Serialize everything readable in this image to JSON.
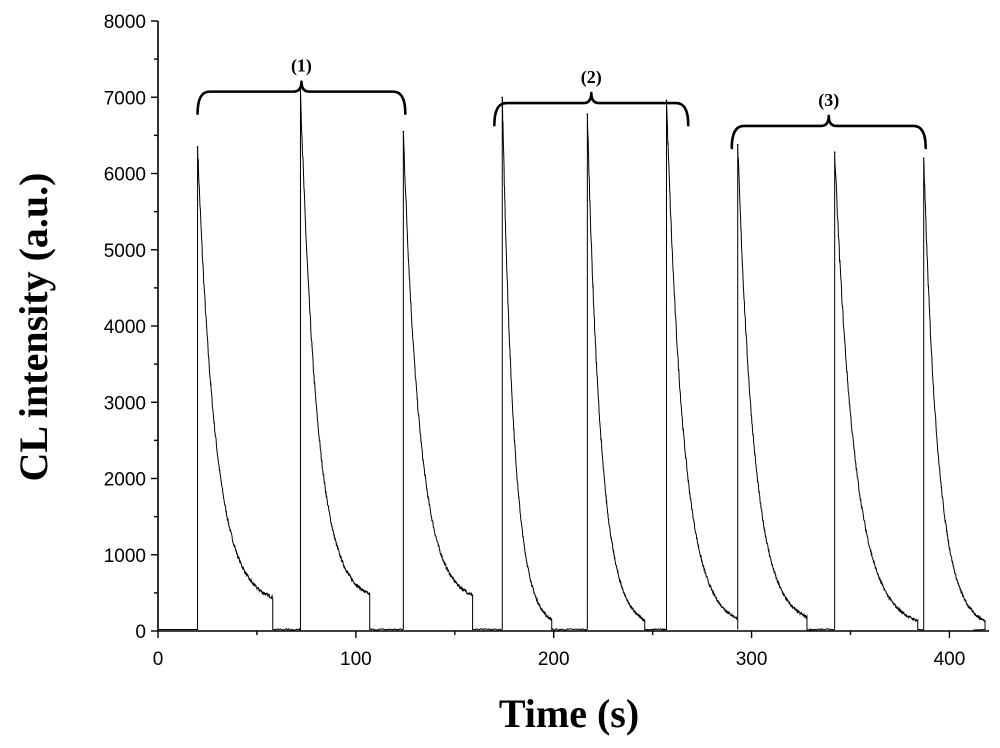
{
  "chart_data": {
    "type": "line",
    "title": "",
    "xlabel": "Time (s)",
    "ylabel": "CL intensity (a.u.)",
    "xlim": [
      0,
      420
    ],
    "ylim": [
      0,
      8000
    ],
    "x_ticks": [
      0,
      100,
      200,
      300,
      400
    ],
    "y_ticks": [
      0,
      1000,
      2000,
      3000,
      4000,
      5000,
      6000,
      7000,
      8000
    ],
    "grid": false,
    "baseline": 20,
    "peaks": [
      {
        "t": 20,
        "peak": 6350,
        "end": 58,
        "end_level": 350,
        "group": "(1)"
      },
      {
        "t": 72,
        "peak": 7100,
        "end": 107,
        "end_level": 380,
        "group": "(1)"
      },
      {
        "t": 124,
        "peak": 6550,
        "end": 159,
        "end_level": 380,
        "group": "(1)"
      },
      {
        "t": 174,
        "peak": 7000,
        "end": 199,
        "end_level": 40,
        "group": "(2)"
      },
      {
        "t": 217,
        "peak": 6780,
        "end": 246,
        "end_level": 40,
        "group": "(2)"
      },
      {
        "t": 257,
        "peak": 6960,
        "end": 293,
        "end_level": 60,
        "group": "(2)"
      },
      {
        "t": 293,
        "peak": 6380,
        "end": 328,
        "end_level": 90,
        "group": "(3)"
      },
      {
        "t": 342,
        "peak": 6280,
        "end": 384,
        "end_level": 40,
        "group": "(3)"
      },
      {
        "t": 387,
        "peak": 6200,
        "end": 418,
        "end_level": 40,
        "group": "(3)"
      }
    ],
    "annotations": [
      {
        "label": "(1)",
        "x_start": 20,
        "x_end": 125,
        "y": 7100
      },
      {
        "label": "(2)",
        "x_start": 170,
        "x_end": 268,
        "y": 6950
      },
      {
        "label": "(3)",
        "x_start": 290,
        "x_end": 388,
        "y": 6650
      }
    ]
  }
}
